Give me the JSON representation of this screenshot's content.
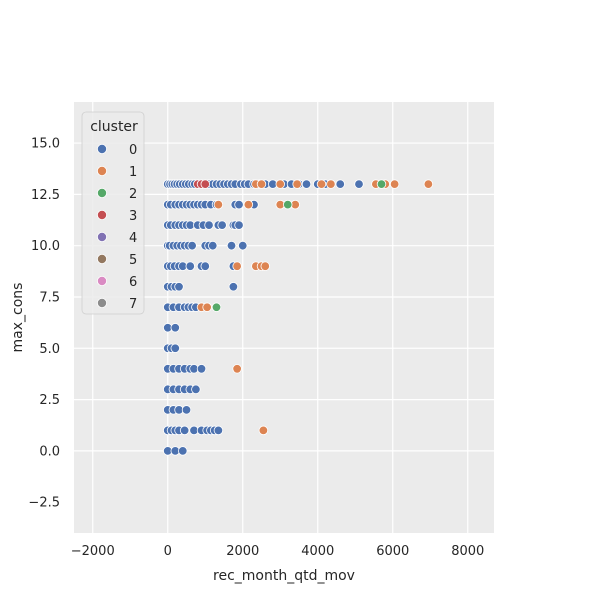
{
  "chart_data": {
    "type": "scatter",
    "xlabel": "rec_month_qtd_mov",
    "ylabel": "max_cons",
    "xlim": [
      -2500,
      8700
    ],
    "ylim": [
      -4,
      17
    ],
    "x_ticks": [
      -2000,
      0,
      2000,
      4000,
      6000,
      8000
    ],
    "x_tick_labels": [
      "−2000",
      "0",
      "2000",
      "4000",
      "6000",
      "8000"
    ],
    "y_ticks": [
      0,
      2.5,
      5,
      7.5,
      10,
      12.5,
      15
    ],
    "y_tick_labels": [
      "0.0",
      "2.5",
      "5.0",
      "7.5",
      "10.0",
      "12.5",
      "15.0"
    ],
    "y_ticks_minor": [
      -2.5
    ],
    "y_tick_labels_minor": [
      "−2.5"
    ],
    "grid": true,
    "background": "#ebebeb",
    "legend": {
      "title": "cluster",
      "placement": "top-left",
      "entries": [
        {
          "label": "0",
          "color": "#4c72b0"
        },
        {
          "label": "1",
          "color": "#dd8452"
        },
        {
          "label": "2",
          "color": "#55a868"
        },
        {
          "label": "3",
          "color": "#c44e52"
        },
        {
          "label": "4",
          "color": "#8172b3"
        },
        {
          "label": "5",
          "color": "#937860"
        },
        {
          "label": "6",
          "color": "#da8bc3"
        },
        {
          "label": "7",
          "color": "#8c8c8c"
        }
      ]
    },
    "series": [
      {
        "name": "0",
        "color": "#4c72b0",
        "points": [
          [
            0,
            13
          ],
          [
            60,
            13
          ],
          [
            120,
            13
          ],
          [
            180,
            13
          ],
          [
            250,
            13
          ],
          [
            320,
            13
          ],
          [
            400,
            13
          ],
          [
            480,
            13
          ],
          [
            560,
            13
          ],
          [
            650,
            13
          ],
          [
            720,
            13
          ],
          [
            1100,
            13
          ],
          [
            1200,
            13
          ],
          [
            1300,
            13
          ],
          [
            1400,
            13
          ],
          [
            1500,
            13
          ],
          [
            1600,
            13
          ],
          [
            1700,
            13
          ],
          [
            1800,
            13
          ],
          [
            1950,
            13
          ],
          [
            2050,
            13
          ],
          [
            2150,
            13
          ],
          [
            2300,
            13
          ],
          [
            2450,
            13
          ],
          [
            2600,
            13
          ],
          [
            2800,
            13
          ],
          [
            3100,
            13
          ],
          [
            3300,
            13
          ],
          [
            3500,
            13
          ],
          [
            3700,
            13
          ],
          [
            4000,
            13
          ],
          [
            4200,
            13
          ],
          [
            4600,
            13
          ],
          [
            5100,
            13
          ],
          [
            0,
            12
          ],
          [
            80,
            12
          ],
          [
            200,
            12
          ],
          [
            300,
            12
          ],
          [
            400,
            12
          ],
          [
            500,
            12
          ],
          [
            600,
            12
          ],
          [
            700,
            12
          ],
          [
            800,
            12
          ],
          [
            900,
            12
          ],
          [
            1000,
            12
          ],
          [
            1150,
            12
          ],
          [
            1300,
            12
          ],
          [
            1800,
            12
          ],
          [
            1900,
            12
          ],
          [
            2300,
            12
          ],
          [
            0,
            11
          ],
          [
            80,
            11
          ],
          [
            200,
            11
          ],
          [
            300,
            11
          ],
          [
            400,
            11
          ],
          [
            500,
            11
          ],
          [
            600,
            11
          ],
          [
            800,
            11
          ],
          [
            950,
            11
          ],
          [
            1100,
            11
          ],
          [
            1350,
            11
          ],
          [
            1450,
            11
          ],
          [
            1750,
            11
          ],
          [
            1800,
            11
          ],
          [
            1900,
            11
          ],
          [
            0,
            10
          ],
          [
            50,
            10
          ],
          [
            150,
            10
          ],
          [
            250,
            10
          ],
          [
            350,
            10
          ],
          [
            450,
            10
          ],
          [
            550,
            10
          ],
          [
            650,
            10
          ],
          [
            1000,
            10
          ],
          [
            1100,
            10
          ],
          [
            1200,
            10
          ],
          [
            1700,
            10
          ],
          [
            2000,
            10
          ],
          [
            0,
            9
          ],
          [
            80,
            9
          ],
          [
            180,
            9
          ],
          [
            300,
            9
          ],
          [
            400,
            9
          ],
          [
            600,
            9
          ],
          [
            900,
            9
          ],
          [
            1000,
            9
          ],
          [
            1750,
            9
          ],
          [
            0,
            8
          ],
          [
            100,
            8
          ],
          [
            200,
            8
          ],
          [
            300,
            8
          ],
          [
            1750,
            8
          ],
          [
            0,
            7
          ],
          [
            150,
            7
          ],
          [
            300,
            7
          ],
          [
            450,
            7
          ],
          [
            550,
            7
          ],
          [
            650,
            7
          ],
          [
            750,
            7
          ],
          [
            0,
            6
          ],
          [
            200,
            6
          ],
          [
            0,
            5
          ],
          [
            100,
            5
          ],
          [
            200,
            5
          ],
          [
            0,
            4
          ],
          [
            150,
            4
          ],
          [
            300,
            4
          ],
          [
            450,
            4
          ],
          [
            600,
            4
          ],
          [
            700,
            4
          ],
          [
            900,
            4
          ],
          [
            0,
            3
          ],
          [
            150,
            3
          ],
          [
            300,
            3
          ],
          [
            450,
            3
          ],
          [
            600,
            3
          ],
          [
            750,
            3
          ],
          [
            0,
            2
          ],
          [
            150,
            2
          ],
          [
            300,
            2
          ],
          [
            500,
            2
          ],
          [
            0,
            1
          ],
          [
            100,
            1
          ],
          [
            200,
            1
          ],
          [
            300,
            1
          ],
          [
            450,
            1
          ],
          [
            700,
            1
          ],
          [
            900,
            1
          ],
          [
            1050,
            1
          ],
          [
            1150,
            1
          ],
          [
            1250,
            1
          ],
          [
            1350,
            1
          ],
          [
            0,
            0
          ],
          [
            200,
            0
          ],
          [
            400,
            0
          ]
        ]
      },
      {
        "name": "1",
        "color": "#dd8452",
        "points": [
          [
            2350,
            13
          ],
          [
            2500,
            13
          ],
          [
            3000,
            13
          ],
          [
            3450,
            13
          ],
          [
            4100,
            13
          ],
          [
            4350,
            13
          ],
          [
            5550,
            13
          ],
          [
            5800,
            13
          ],
          [
            6050,
            13
          ],
          [
            6950,
            13
          ],
          [
            1350,
            12
          ],
          [
            2150,
            12
          ],
          [
            3000,
            12
          ],
          [
            3400,
            12
          ],
          [
            1850,
            9
          ],
          [
            2350,
            9
          ],
          [
            2500,
            9
          ],
          [
            2600,
            9
          ],
          [
            900,
            7
          ],
          [
            1050,
            7
          ],
          [
            1850,
            4
          ],
          [
            2550,
            1
          ]
        ]
      },
      {
        "name": "2",
        "color": "#55a868",
        "points": [
          [
            3200,
            12
          ],
          [
            5700,
            13
          ],
          [
            1300,
            7
          ]
        ]
      },
      {
        "name": "3",
        "color": "#c44e52",
        "points": [
          [
            800,
            13
          ],
          [
            900,
            13
          ],
          [
            1000,
            13
          ]
        ]
      }
    ]
  }
}
